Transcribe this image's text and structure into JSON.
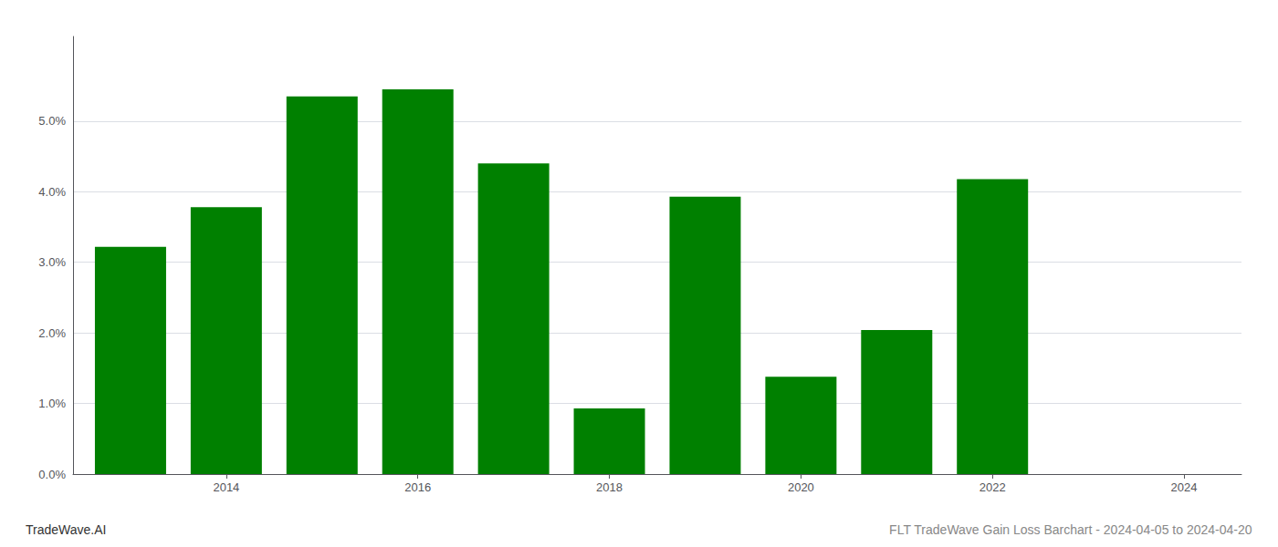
{
  "chart_data": {
    "type": "bar",
    "x": [
      2013,
      2014,
      2015,
      2016,
      2017,
      2018,
      2019,
      2020,
      2021,
      2022,
      2023
    ],
    "values": [
      0.0322,
      0.0378,
      0.0535,
      0.0545,
      0.044,
      0.0093,
      0.0393,
      0.0138,
      0.0204,
      0.0418,
      0.0
    ],
    "color": "#008000",
    "xlim": [
      2012.4,
      2024.6
    ],
    "xticks": [
      2014,
      2016,
      2018,
      2020,
      2022,
      2024
    ],
    "ylim": [
      0,
      0.062
    ],
    "yticks": [
      {
        "value": 0.0,
        "label": "0.0%"
      },
      {
        "value": 0.01,
        "label": "1.0%"
      },
      {
        "value": 0.02,
        "label": "2.0%"
      },
      {
        "value": 0.03,
        "label": "3.0%"
      },
      {
        "value": 0.04,
        "label": "4.0%"
      },
      {
        "value": 0.05,
        "label": "5.0%"
      }
    ],
    "grid": true,
    "annotations": [
      "TradeWave.AI",
      "FLT TradeWave Gain Loss Barchart - 2024-04-05 to 2024-04-20"
    ]
  }
}
